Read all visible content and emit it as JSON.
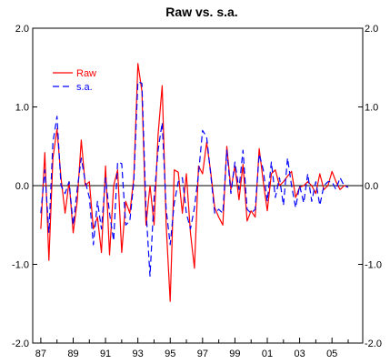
{
  "chart_data": {
    "type": "line",
    "title": "Raw vs. s.a.",
    "xlabel": "",
    "ylabel": "",
    "x_ticks": [
      "87",
      "89",
      "91",
      "93",
      "95",
      "97",
      "99",
      "01",
      "03",
      "05"
    ],
    "y_ticks": [
      "-2.0",
      "-1.0",
      "0.0",
      "1.0",
      "2.0"
    ],
    "ylim": [
      -2.0,
      2.0
    ],
    "xlim": [
      1986.5,
      2006.9
    ],
    "grid": false,
    "zero_line": true,
    "legend_position": "top-left",
    "x": [
      1987.0,
      1987.25,
      1987.5,
      1987.75,
      1988.0,
      1988.25,
      1988.5,
      1988.75,
      1989.0,
      1989.25,
      1989.5,
      1989.75,
      1990.0,
      1990.25,
      1990.5,
      1990.75,
      1991.0,
      1991.25,
      1991.5,
      1991.75,
      1992.0,
      1992.25,
      1992.5,
      1992.75,
      1993.0,
      1993.25,
      1993.5,
      1993.75,
      1994.0,
      1994.25,
      1994.5,
      1994.75,
      1995.0,
      1995.25,
      1995.5,
      1995.75,
      1996.0,
      1996.25,
      1996.5,
      1996.75,
      1997.0,
      1997.25,
      1997.5,
      1997.75,
      1998.0,
      1998.25,
      1998.5,
      1998.75,
      1999.0,
      1999.25,
      1999.5,
      1999.75,
      2000.0,
      2000.25,
      2000.5,
      2000.75,
      2001.0,
      2001.25,
      2001.5,
      2001.75,
      2002.0,
      2002.25,
      2002.5,
      2002.75,
      2003.0,
      2003.25,
      2003.5,
      2003.75,
      2004.0,
      2004.25,
      2004.5,
      2004.75,
      2005.0,
      2005.25,
      2005.5,
      2005.75,
      2006.0
    ],
    "series": [
      {
        "name": "Raw",
        "color": "#ff0000",
        "dash": "solid",
        "values": [
          -0.55,
          0.42,
          -0.95,
          0.35,
          0.72,
          0.1,
          -0.35,
          0.05,
          -0.6,
          -0.2,
          0.58,
          0.0,
          0.05,
          -0.55,
          -0.4,
          -0.85,
          0.25,
          -0.88,
          0.0,
          0.2,
          -0.85,
          -0.2,
          -0.35,
          0.1,
          1.55,
          1.2,
          -0.5,
          0.0,
          -0.5,
          0.65,
          1.27,
          -0.5,
          -1.47,
          0.2,
          0.17,
          -0.35,
          0.15,
          -0.6,
          -1.05,
          0.25,
          0.15,
          0.55,
          0.18,
          -0.28,
          -0.4,
          -0.5,
          0.5,
          -0.05,
          0.25,
          -0.18,
          0.27,
          -0.45,
          -0.32,
          -0.4,
          0.47,
          0.05,
          -0.32,
          0.15,
          0.2,
          0.0,
          0.05,
          0.12,
          0.18,
          -0.15,
          -0.02,
          0.0,
          0.05,
          0.0,
          -0.1,
          0.15,
          -0.05,
          0.0,
          0.18,
          0.05,
          -0.05,
          0.0,
          -0.02
        ]
      },
      {
        "name": "s.a.",
        "color": "#0000ff",
        "dash": "dashed",
        "values": [
          -0.35,
          0.2,
          -0.6,
          0.55,
          0.88,
          0.0,
          -0.1,
          0.05,
          -0.5,
          -0.05,
          0.35,
          0.05,
          -0.15,
          -0.75,
          -0.2,
          -0.55,
          0.1,
          -0.35,
          -0.7,
          0.3,
          0.28,
          -0.5,
          -0.45,
          0.05,
          1.32,
          1.3,
          -0.3,
          -1.15,
          -0.15,
          0.45,
          0.8,
          -0.3,
          -0.75,
          -0.22,
          0.05,
          0.1,
          -0.35,
          -0.55,
          -0.28,
          0.15,
          0.7,
          0.62,
          0.15,
          -0.35,
          -0.3,
          -0.35,
          0.45,
          -0.1,
          0.3,
          -0.05,
          0.45,
          -0.3,
          -0.35,
          -0.3,
          0.4,
          0.2,
          -0.2,
          0.3,
          -0.15,
          0.1,
          -0.25,
          0.35,
          0.0,
          -0.28,
          0.0,
          -0.22,
          0.15,
          -0.2,
          0.05,
          -0.25,
          0.0,
          0.05,
          0.05,
          -0.05,
          0.1,
          0.0,
          -0.02
        ]
      }
    ]
  }
}
